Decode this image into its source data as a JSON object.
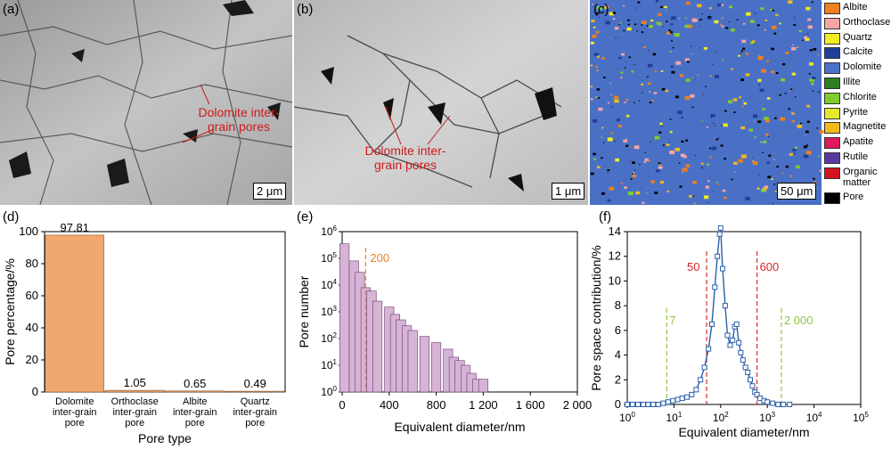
{
  "panels": {
    "a": {
      "label": "(a)",
      "scale": "2 μm",
      "annotation": [
        "Dolomite inter-",
        "grain pores"
      ]
    },
    "b": {
      "label": "(b)",
      "scale": "1 μm",
      "annotation": [
        "Dolomite inter-",
        "grain pores"
      ]
    },
    "c": {
      "label": "(c)",
      "scale": "50 μm"
    },
    "d": {
      "label": "(d)"
    },
    "e": {
      "label": "(e)"
    },
    "f": {
      "label": "(f)"
    }
  },
  "legend": [
    {
      "name": "Albite",
      "color": "#f07f1f"
    },
    {
      "name": "Orthoclase",
      "color": "#f5a5a5"
    },
    {
      "name": "Quartz",
      "color": "#f2ec22"
    },
    {
      "name": "Calcite",
      "color": "#1f3f9a"
    },
    {
      "name": "Dolomite",
      "color": "#4b72c8"
    },
    {
      "name": "Illite",
      "color": "#2e7d25"
    },
    {
      "name": "Chlorite",
      "color": "#7fcc2e"
    },
    {
      "name": "Pyrite",
      "color": "#e6e82c"
    },
    {
      "name": "Magnetite",
      "color": "#f2b91d"
    },
    {
      "name": "Apatite",
      "color": "#e0185e"
    },
    {
      "name": "Rutile",
      "color": "#5a3aa0"
    },
    {
      "name": "Organic matter",
      "color": "#d4141f"
    },
    {
      "name": "Pore",
      "color": "#000000"
    }
  ],
  "chart_data": [
    {
      "type": "bar",
      "panel": "d",
      "categories": [
        [
          "Dolomite",
          "inter-grain",
          "pore"
        ],
        [
          "Orthoclase",
          "inter-grain",
          "pore"
        ],
        [
          "Albite",
          "inter-grain",
          "pore"
        ],
        [
          "Quartz",
          "inter-grain",
          "pore"
        ]
      ],
      "values": [
        97.81,
        1.05,
        0.65,
        0.49
      ],
      "value_labels": [
        "97.81",
        "1.05",
        "0.65",
        "0.49"
      ],
      "xlabel": "Pore type",
      "ylabel": "Pore percentage/%",
      "ylim": [
        0,
        100
      ],
      "yticks": [
        "0",
        "20",
        "40",
        "60",
        "80",
        "100"
      ],
      "bar_color": "#f0a870"
    },
    {
      "type": "bar",
      "panel": "e",
      "x": [
        20,
        100,
        150,
        200,
        250,
        300,
        400,
        450,
        500,
        550,
        600,
        700,
        800,
        900,
        950,
        1000,
        1050,
        1100,
        1150,
        1200,
        1600,
        2000
      ],
      "values": [
        350000,
        80000,
        30000,
        8000,
        6000,
        2500,
        1500,
        800,
        500,
        300,
        200,
        120,
        70,
        40,
        20,
        15,
        10,
        5,
        3,
        3,
        1,
        1
      ],
      "xlabel": "Equivalent diameter/nm",
      "ylabel": "Pore number",
      "xlim": [
        0,
        2000
      ],
      "xticks": [
        "0",
        "400",
        "800",
        "1 200",
        "1 600",
        "2 000"
      ],
      "ylim_log": [
        0,
        6
      ],
      "yticks": [
        "10^0",
        "10^1",
        "10^2",
        "10^3",
        "10^4",
        "10^5",
        "10^6"
      ],
      "reference_line": {
        "x": 200,
        "label": "200",
        "color": "#e8822a"
      },
      "bar_color": "#d6b4d6"
    },
    {
      "type": "line",
      "panel": "f",
      "x": [
        1,
        1.3,
        1.7,
        2.2,
        2.8,
        3.6,
        4.6,
        5.9,
        7.5,
        9.5,
        12,
        15,
        19,
        24,
        30,
        37,
        45,
        55,
        65,
        75,
        85,
        95,
        100,
        110,
        125,
        140,
        160,
        180,
        200,
        220,
        245,
        270,
        300,
        340,
        380,
        430,
        480,
        540,
        600,
        700,
        850,
        1000,
        1300,
        1700,
        2200,
        3000
      ],
      "values": [
        0,
        0,
        0,
        0,
        0,
        0,
        0,
        0.1,
        0.2,
        0.3,
        0.4,
        0.5,
        0.6,
        0.8,
        1.2,
        2.0,
        3.0,
        4.5,
        6.5,
        9.5,
        12.0,
        13.8,
        14.3,
        11.0,
        8.0,
        5.6,
        4.8,
        5.2,
        6.3,
        6.5,
        5.0,
        4.2,
        3.6,
        3.0,
        2.6,
        2.0,
        1.5,
        1.0,
        0.8,
        0.5,
        0.3,
        0.2,
        0.1,
        0,
        0,
        0
      ],
      "xlabel": "Equivalent diameter/nm",
      "ylabel": "Pore space contribution/%",
      "xlim_log": [
        0,
        5
      ],
      "xticks": [
        "10^0",
        "10^1",
        "10^2",
        "10^3",
        "10^4",
        "10^5"
      ],
      "ylim": [
        0,
        14
      ],
      "yticks": [
        "0",
        "2",
        "4",
        "6",
        "8",
        "10",
        "12",
        "14"
      ],
      "reference_lines": [
        {
          "x": 7,
          "label": "7",
          "color": "#8cc63f"
        },
        {
          "x": 50,
          "label": "50",
          "color": "#d42b2b"
        },
        {
          "x": 600,
          "label": "600",
          "color": "#d42b2b"
        },
        {
          "x": 2000,
          "label": "2 000",
          "color": "#8cc63f"
        }
      ],
      "line_color": "#2a5faa"
    }
  ]
}
